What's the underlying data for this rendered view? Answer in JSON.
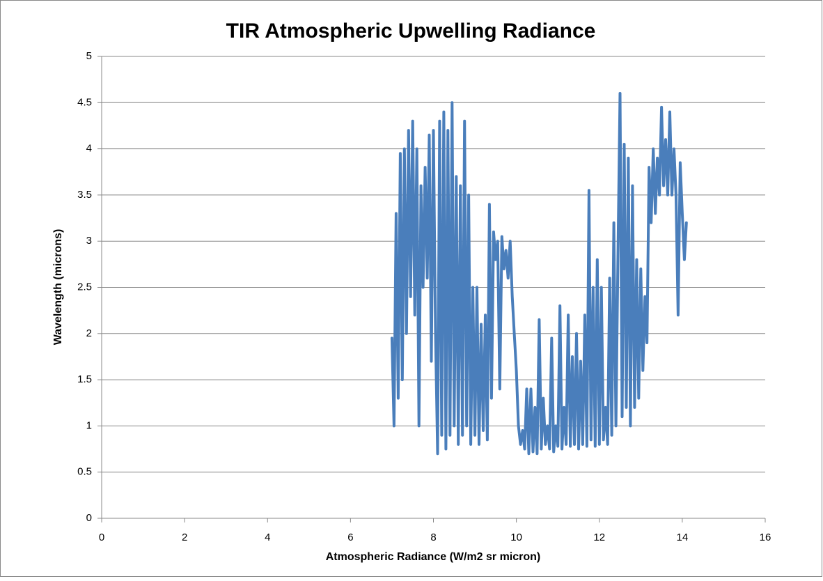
{
  "chart_data": {
    "type": "line",
    "title": "TIR Atmospheric Upwelling Radiance",
    "x_label": "Atmospheric Radiance (W/m2 sr micron)",
    "y_label": "Wavelength (microns)",
    "color": "#4a7ebb",
    "grid": true,
    "xlim": [
      0,
      16
    ],
    "xticks": [
      0,
      2,
      4,
      6,
      8,
      10,
      12,
      14,
      16
    ],
    "ylim": [
      0,
      5
    ],
    "yticks": [
      0,
      0.5,
      1,
      1.5,
      2,
      2.5,
      3,
      3.5,
      4,
      4.5,
      5
    ],
    "x": [
      7.0,
      7.05,
      7.1,
      7.15,
      7.2,
      7.25,
      7.3,
      7.35,
      7.4,
      7.45,
      7.5,
      7.55,
      7.6,
      7.65,
      7.7,
      7.75,
      7.8,
      7.85,
      7.9,
      7.95,
      8.0,
      8.05,
      8.1,
      8.15,
      8.2,
      8.25,
      8.3,
      8.35,
      8.4,
      8.45,
      8.5,
      8.55,
      8.6,
      8.65,
      8.7,
      8.75,
      8.8,
      8.85,
      8.9,
      8.95,
      9.0,
      9.05,
      9.1,
      9.15,
      9.2,
      9.25,
      9.3,
      9.35,
      9.4,
      9.45,
      9.5,
      9.55,
      9.6,
      9.65,
      9.7,
      9.75,
      9.8,
      9.85,
      9.9,
      9.95,
      10.0,
      10.05,
      10.1,
      10.15,
      10.2,
      10.25,
      10.3,
      10.35,
      10.4,
      10.45,
      10.5,
      10.55,
      10.6,
      10.65,
      10.7,
      10.75,
      10.8,
      10.85,
      10.9,
      10.95,
      11.0,
      11.05,
      11.1,
      11.15,
      11.2,
      11.25,
      11.3,
      11.35,
      11.4,
      11.45,
      11.5,
      11.55,
      11.6,
      11.65,
      11.7,
      11.75,
      11.8,
      11.85,
      11.9,
      11.95,
      12.0,
      12.05,
      12.1,
      12.15,
      12.2,
      12.25,
      12.3,
      12.35,
      12.4,
      12.45,
      12.5,
      12.55,
      12.6,
      12.65,
      12.7,
      12.75,
      12.8,
      12.85,
      12.9,
      12.95,
      13.0,
      13.05,
      13.1,
      13.15,
      13.2,
      13.25,
      13.3,
      13.35,
      13.4,
      13.45,
      13.5,
      13.55,
      13.6,
      13.65,
      13.7,
      13.75,
      13.8,
      13.85,
      13.9,
      13.95,
      14.0,
      14.05,
      14.1
    ],
    "values": [
      1.95,
      1.0,
      3.3,
      1.3,
      3.95,
      1.5,
      4.0,
      2.0,
      4.2,
      2.4,
      4.3,
      2.2,
      4.0,
      1.0,
      3.6,
      2.5,
      3.8,
      2.6,
      4.15,
      1.7,
      4.2,
      2.0,
      0.7,
      4.3,
      0.9,
      4.4,
      0.75,
      4.2,
      0.9,
      4.5,
      1.0,
      3.7,
      0.8,
      3.6,
      0.9,
      4.3,
      1.0,
      3.5,
      0.8,
      2.5,
      0.9,
      2.5,
      0.8,
      2.1,
      0.95,
      2.2,
      0.85,
      3.4,
      1.3,
      3.1,
      2.8,
      3.0,
      1.4,
      3.05,
      2.7,
      2.9,
      2.6,
      3.0,
      2.4,
      2.0,
      1.6,
      1.0,
      0.8,
      0.95,
      0.75,
      1.4,
      0.7,
      1.4,
      0.72,
      1.2,
      0.7,
      2.15,
      0.75,
      1.3,
      0.8,
      1.0,
      0.75,
      1.95,
      0.72,
      1.0,
      0.78,
      2.3,
      0.75,
      1.2,
      0.8,
      2.2,
      0.78,
      1.75,
      0.8,
      2.0,
      0.75,
      1.7,
      0.8,
      2.2,
      0.78,
      3.55,
      0.85,
      2.5,
      0.78,
      2.8,
      0.8,
      2.5,
      0.85,
      1.2,
      0.8,
      2.6,
      0.9,
      3.2,
      1.0,
      2.9,
      4.6,
      1.1,
      4.05,
      1.2,
      3.9,
      1.0,
      3.6,
      1.2,
      2.8,
      1.3,
      2.7,
      1.6,
      2.4,
      1.9,
      3.8,
      3.2,
      4.0,
      3.3,
      3.9,
      3.5,
      4.45,
      3.6,
      4.1,
      3.5,
      4.4,
      3.5,
      4.0,
      3.5,
      2.2,
      3.85,
      3.3,
      2.8,
      3.2
    ]
  }
}
